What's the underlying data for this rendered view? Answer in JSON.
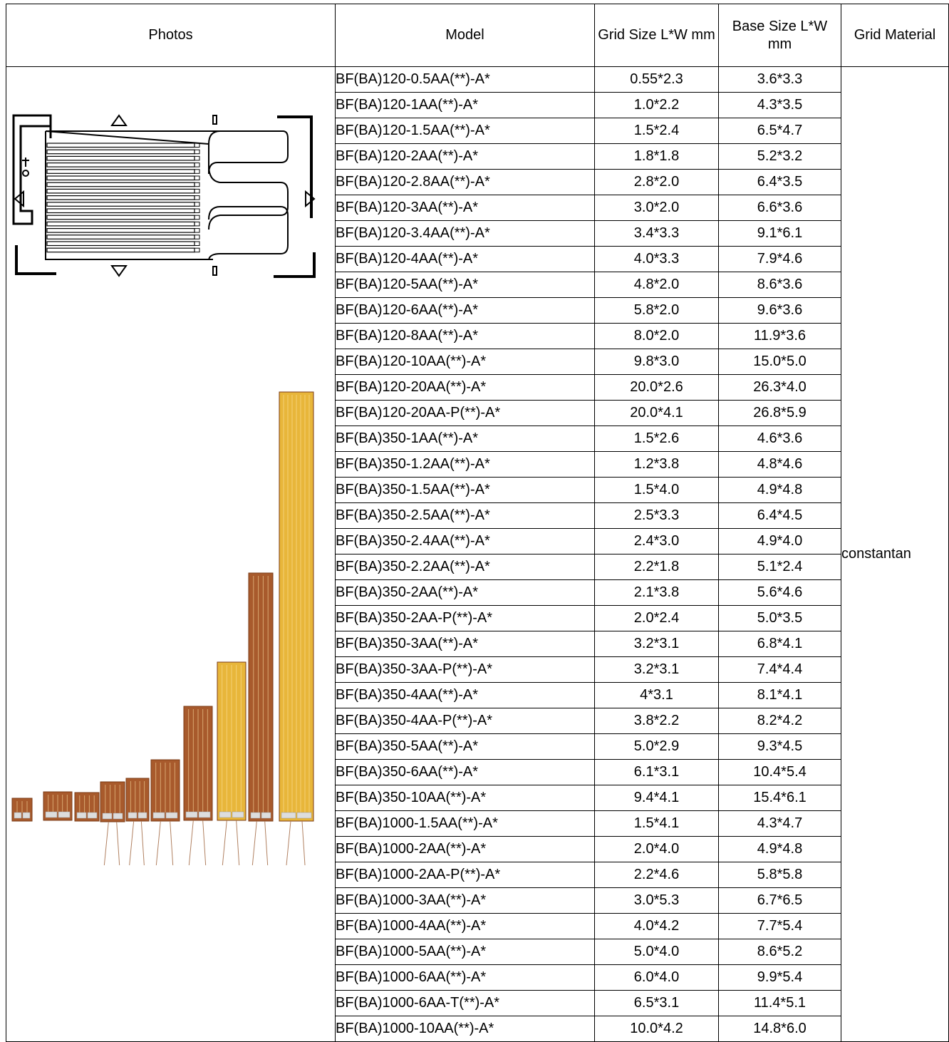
{
  "table": {
    "headers": {
      "photos": "Photos",
      "model": "Model",
      "grid_size": "Grid Size L*W mm",
      "base_size": "Base Size L*W mm",
      "grid_material": "Grid Material"
    },
    "grid_material_value": "constantan",
    "rows": [
      {
        "model": "BF(BA)120-0.5AA(**)-A*",
        "grid": "0.55*2.3",
        "base": "3.6*3.3"
      },
      {
        "model": "BF(BA)120-1AA(**)-A*",
        "grid": "1.0*2.2",
        "base": "4.3*3.5"
      },
      {
        "model": "BF(BA)120-1.5AA(**)-A*",
        "grid": "1.5*2.4",
        "base": "6.5*4.7"
      },
      {
        "model": "BF(BA)120-2AA(**)-A*",
        "grid": "1.8*1.8",
        "base": "5.2*3.2"
      },
      {
        "model": "BF(BA)120-2.8AA(**)-A*",
        "grid": "2.8*2.0",
        "base": "6.4*3.5"
      },
      {
        "model": "BF(BA)120-3AA(**)-A*",
        "grid": "3.0*2.0",
        "base": "6.6*3.6"
      },
      {
        "model": "BF(BA)120-3.4AA(**)-A*",
        "grid": "3.4*3.3",
        "base": "9.1*6.1"
      },
      {
        "model": "BF(BA)120-4AA(**)-A*",
        "grid": "4.0*3.3",
        "base": "7.9*4.6"
      },
      {
        "model": "BF(BA)120-5AA(**)-A*",
        "grid": "4.8*2.0",
        "base": "8.6*3.6"
      },
      {
        "model": "BF(BA)120-6AA(**)-A*",
        "grid": "5.8*2.0",
        "base": "9.6*3.6"
      },
      {
        "model": "BF(BA)120-8AA(**)-A*",
        "grid": "8.0*2.0",
        "base": "11.9*3.6"
      },
      {
        "model": "BF(BA)120-10AA(**)-A*",
        "grid": "9.8*3.0",
        "base": "15.0*5.0"
      },
      {
        "model": "BF(BA)120-20AA(**)-A*",
        "grid": "20.0*2.6",
        "base": "26.3*4.0"
      },
      {
        "model": "BF(BA)120-20AA-P(**)-A*",
        "grid": "20.0*4.1",
        "base": "26.8*5.9"
      },
      {
        "model": "BF(BA)350-1AA(**)-A*",
        "grid": "1.5*2.6",
        "base": "4.6*3.6"
      },
      {
        "model": "BF(BA)350-1.2AA(**)-A*",
        "grid": "1.2*3.8",
        "base": "4.8*4.6"
      },
      {
        "model": "BF(BA)350-1.5AA(**)-A*",
        "grid": "1.5*4.0",
        "base": "4.9*4.8"
      },
      {
        "model": "BF(BA)350-2.5AA(**)-A*",
        "grid": "2.5*3.3",
        "base": "6.4*4.5"
      },
      {
        "model": "BF(BA)350-2.4AA(**)-A*",
        "grid": "2.4*3.0",
        "base": "4.9*4.0"
      },
      {
        "model": "BF(BA)350-2.2AA(**)-A*",
        "grid": "2.2*1.8",
        "base": "5.1*2.4"
      },
      {
        "model": "BF(BA)350-2AA(**)-A*",
        "grid": "2.1*3.8",
        "base": "5.6*4.6"
      },
      {
        "model": "BF(BA)350-2AA-P(**)-A*",
        "grid": "2.0*2.4",
        "base": "5.0*3.5"
      },
      {
        "model": "BF(BA)350-3AA(**)-A*",
        "grid": "3.2*3.1",
        "base": "6.8*4.1"
      },
      {
        "model": "BF(BA)350-3AA-P(**)-A*",
        "grid": "3.2*3.1",
        "base": "7.4*4.4"
      },
      {
        "model": "BF(BA)350-4AA(**)-A*",
        "grid": "4*3.1",
        "base": "8.1*4.1"
      },
      {
        "model": "BF(BA)350-4AA-P(**)-A*",
        "grid": "3.8*2.2",
        "base": "8.2*4.2"
      },
      {
        "model": "BF(BA)350-5AA(**)-A*",
        "grid": "5.0*2.9",
        "base": "9.3*4.5"
      },
      {
        "model": "BF(BA)350-6AA(**)-A*",
        "grid": "6.1*3.1",
        "base": "10.4*5.4"
      },
      {
        "model": "BF(BA)350-10AA(**)-A*",
        "grid": "9.4*4.1",
        "base": "15.4*6.1"
      },
      {
        "model": "BF(BA)1000-1.5AA(**)-A*",
        "grid": "1.5*4.1",
        "base": "4.3*4.7"
      },
      {
        "model": "BF(BA)1000-2AA(**)-A*",
        "grid": "2.0*4.0",
        "base": "4.9*4.8"
      },
      {
        "model": "BF(BA)1000-2AA-P(**)-A*",
        "grid": "2.2*4.6",
        "base": "5.8*5.8"
      },
      {
        "model": "BF(BA)1000-3AA(**)-A*",
        "grid": "3.0*5.3",
        "base": "6.7*6.5"
      },
      {
        "model": "BF(BA)1000-4AA(**)-A*",
        "grid": "4.0*4.2",
        "base": "7.7*5.4"
      },
      {
        "model": "BF(BA)1000-5AA(**)-A*",
        "grid": "5.0*4.0",
        "base": "8.6*5.2"
      },
      {
        "model": "BF(BA)1000-6AA(**)-A*",
        "grid": "6.0*4.0",
        "base": "9.9*5.4"
      },
      {
        "model": "BF(BA)1000-6AA-T(**)-A*",
        "grid": "6.5*3.1",
        "base": "11.4*5.1"
      },
      {
        "model": "BF(BA)1000-10AA(**)-A*",
        "grid": "10.0*4.2",
        "base": "14.8*6.0"
      }
    ]
  },
  "colors": {
    "gauge_copper": "#a85a2c",
    "gauge_gold": "#e8b63a",
    "line": "#000000"
  }
}
